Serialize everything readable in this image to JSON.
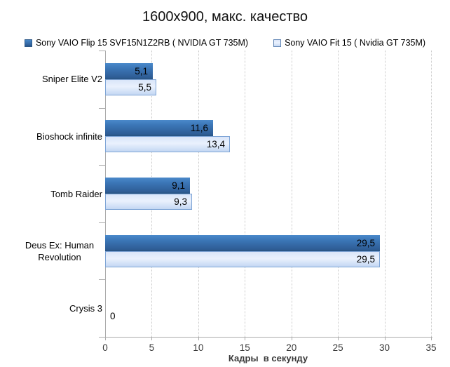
{
  "title": "1600x900, макс. качество",
  "legend": {
    "items": [
      {
        "label": "Sony VAIO Flip 15 SVF15N1Z2RB ( NVIDIA GT 735M)",
        "swatch": "dark"
      },
      {
        "label": "Sony VAIO Fit 15 ( Nvidia GT 735M)",
        "swatch": "light"
      }
    ]
  },
  "chart_data": {
    "type": "bar",
    "orientation": "horizontal",
    "title": "1600x900, макс. качество",
    "categories": [
      "Sniper Elite V2",
      "Bioshock infinite",
      "Tomb Raider",
      "Deus Ex: Human\nRevolution",
      "Crysis 3"
    ],
    "series": [
      {
        "name": "Sony VAIO Flip 15 SVF15N1Z2RB ( NVIDIA GT 735M)",
        "color": "#31639C",
        "values": [
          5.1,
          11.6,
          9.1,
          29.5,
          null
        ],
        "labels": [
          "5,1",
          "11,6",
          "9,1",
          "29,5",
          null
        ]
      },
      {
        "name": "Sony VAIO Fit 15 ( Nvidia GT 735M)",
        "color": "#C9DCF5",
        "values": [
          5.5,
          13.4,
          9.3,
          29.5,
          0
        ],
        "labels": [
          "5,5",
          "13,4",
          "9,3",
          "29,5",
          "0"
        ]
      }
    ],
    "xlabel": "Кадры  в секунду",
    "xlim": [
      0,
      35
    ],
    "xticks": [
      0,
      5,
      10,
      15,
      20,
      25,
      30,
      35
    ],
    "grid": "vertical-dotted",
    "legend_position": "top"
  },
  "colors": {
    "bar_dark": "#31639C",
    "bar_dark_gradient_top": "#4687C8",
    "bar_dark_gradient_bottom": "#27527F",
    "bar_light": "#D9E5F9",
    "bar_light_border": "#7FA5D6",
    "gridline": "#C9C9C9",
    "axis": "#ABABAB",
    "text": "#000000"
  }
}
